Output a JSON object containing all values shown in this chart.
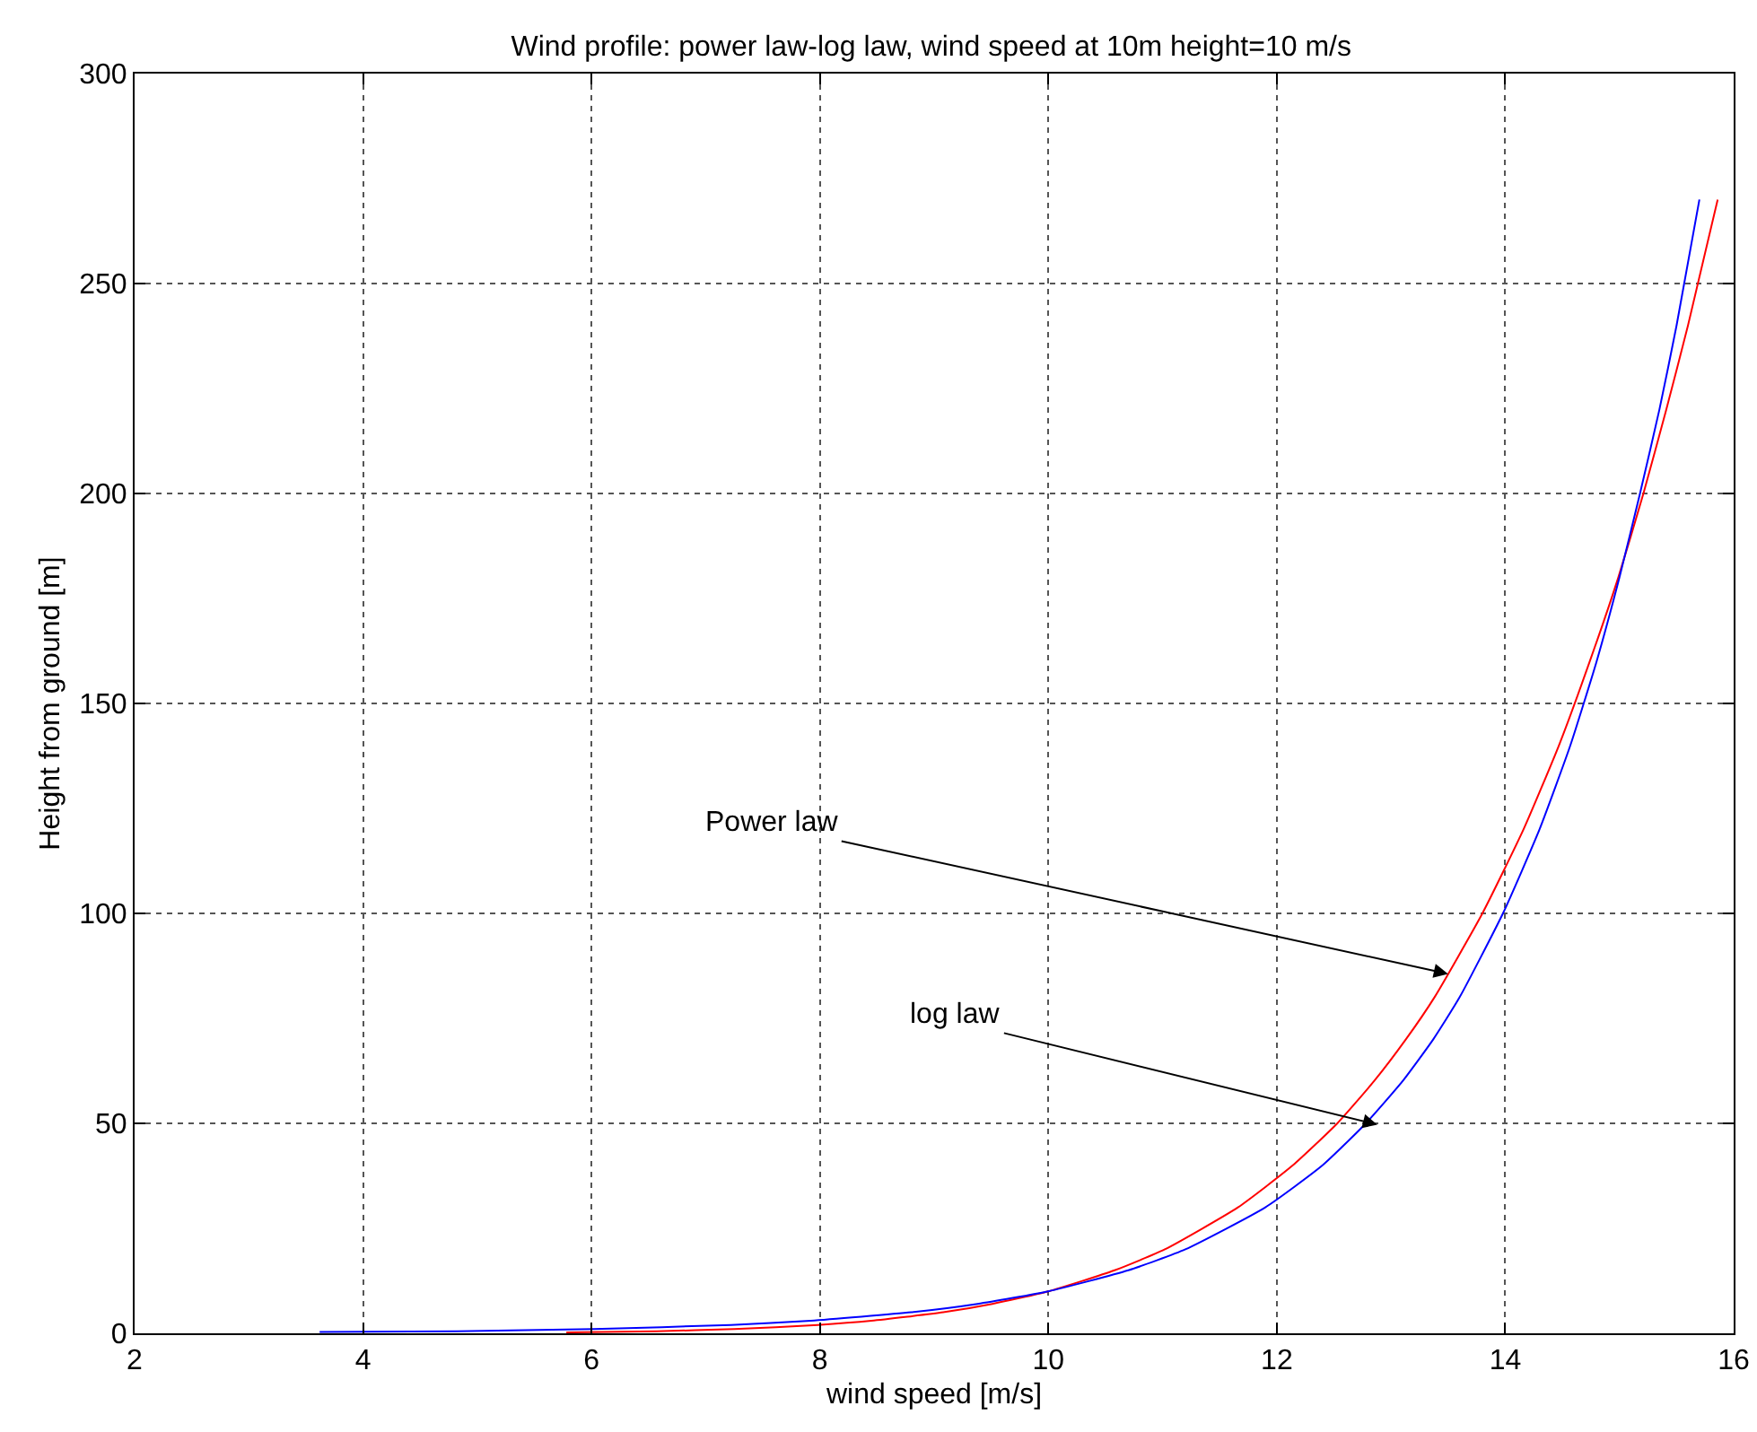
{
  "chart_data": {
    "type": "line",
    "title": "Wind profile: power law-log law, wind speed at 10m height=10 m/s",
    "xlabel": "wind speed [m/s]",
    "ylabel": "Height from ground [m]",
    "series": [
      {
        "color": "#ff0000",
        "x": [
          5.78,
          6.57,
          7.25,
          7.98,
          8.45,
          9.08,
          9.51,
          10,
          10.58,
          11.02,
          11.66,
          12.14,
          12.53,
          12.85,
          13.13,
          13.38,
          13.8,
          14.16,
          14.47,
          14.74,
          14.99,
          15.21,
          15.41,
          15.6,
          15.86
        ],
        "values": [
          0.2,
          0.5,
          1,
          2,
          3,
          5,
          7,
          10,
          15,
          20,
          30,
          40,
          50,
          60,
          70,
          80,
          100,
          120,
          140,
          160,
          180,
          200,
          220,
          240,
          270
        ]
      },
      {
        "color": "#0000ff",
        "x": [
          3.62,
          4.82,
          6.02,
          7.22,
          7.92,
          8.8,
          9.38,
          10,
          10.7,
          11.2,
          11.9,
          12.4,
          12.78,
          13.1,
          13.37,
          13.6,
          13.98,
          14.3,
          14.57,
          14.8,
          15,
          15.18,
          15.35,
          15.5,
          15.7
        ],
        "values": [
          0.3,
          0.5,
          1,
          2,
          3,
          5,
          7,
          10,
          15,
          20,
          30,
          40,
          50,
          60,
          70,
          80,
          100,
          120,
          140,
          160,
          180,
          200,
          220,
          240,
          270
        ]
      }
    ],
    "annotations": [
      {
        "text": "Power law",
        "x": 13.5,
        "y": 85.6
      },
      {
        "text": "log law",
        "x": 12.88,
        "y": 49.7
      }
    ],
    "xlim": [
      2,
      16
    ],
    "xticks": [
      2,
      4,
      6,
      8,
      10,
      12,
      14,
      16
    ],
    "ylim": [
      0,
      300
    ],
    "yticks": [
      0,
      50,
      100,
      150,
      200,
      250,
      300
    ],
    "grid": true,
    "line_style": "solid",
    "marker": "none"
  }
}
